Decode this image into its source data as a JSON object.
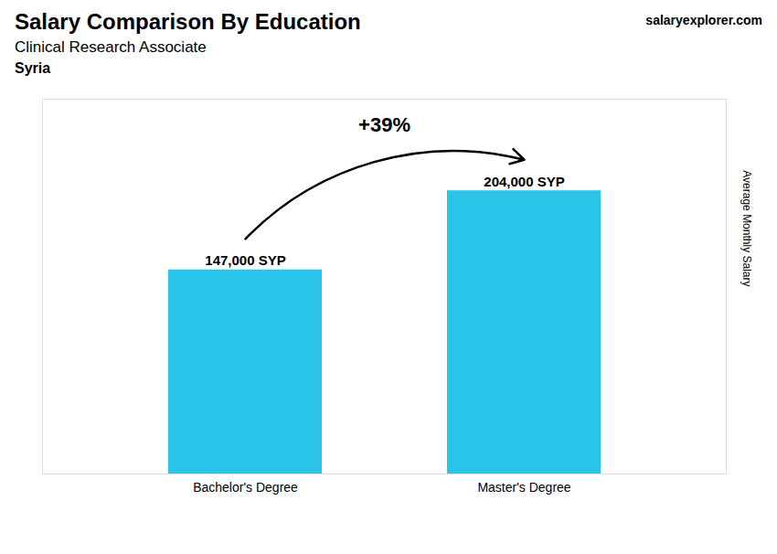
{
  "chart_data": {
    "type": "bar",
    "title": "Salary Comparison By Education",
    "subtitle": "Clinical Research Associate",
    "annotations": [
      "Syria",
      "salaryexplorer.com",
      "+39%"
    ],
    "y_label": "Average Monthly Salary",
    "categories": [
      "Bachelor's Degree",
      "Master's Degree"
    ],
    "values": [
      147000,
      204000
    ],
    "value_labels": [
      "147,000 SYP",
      "204,000 SYP"
    ],
    "data_labels": true,
    "color": "#29C4E8",
    "ylim": [
      0,
      270000
    ],
    "tick_labels": "x",
    "grid": false
  }
}
